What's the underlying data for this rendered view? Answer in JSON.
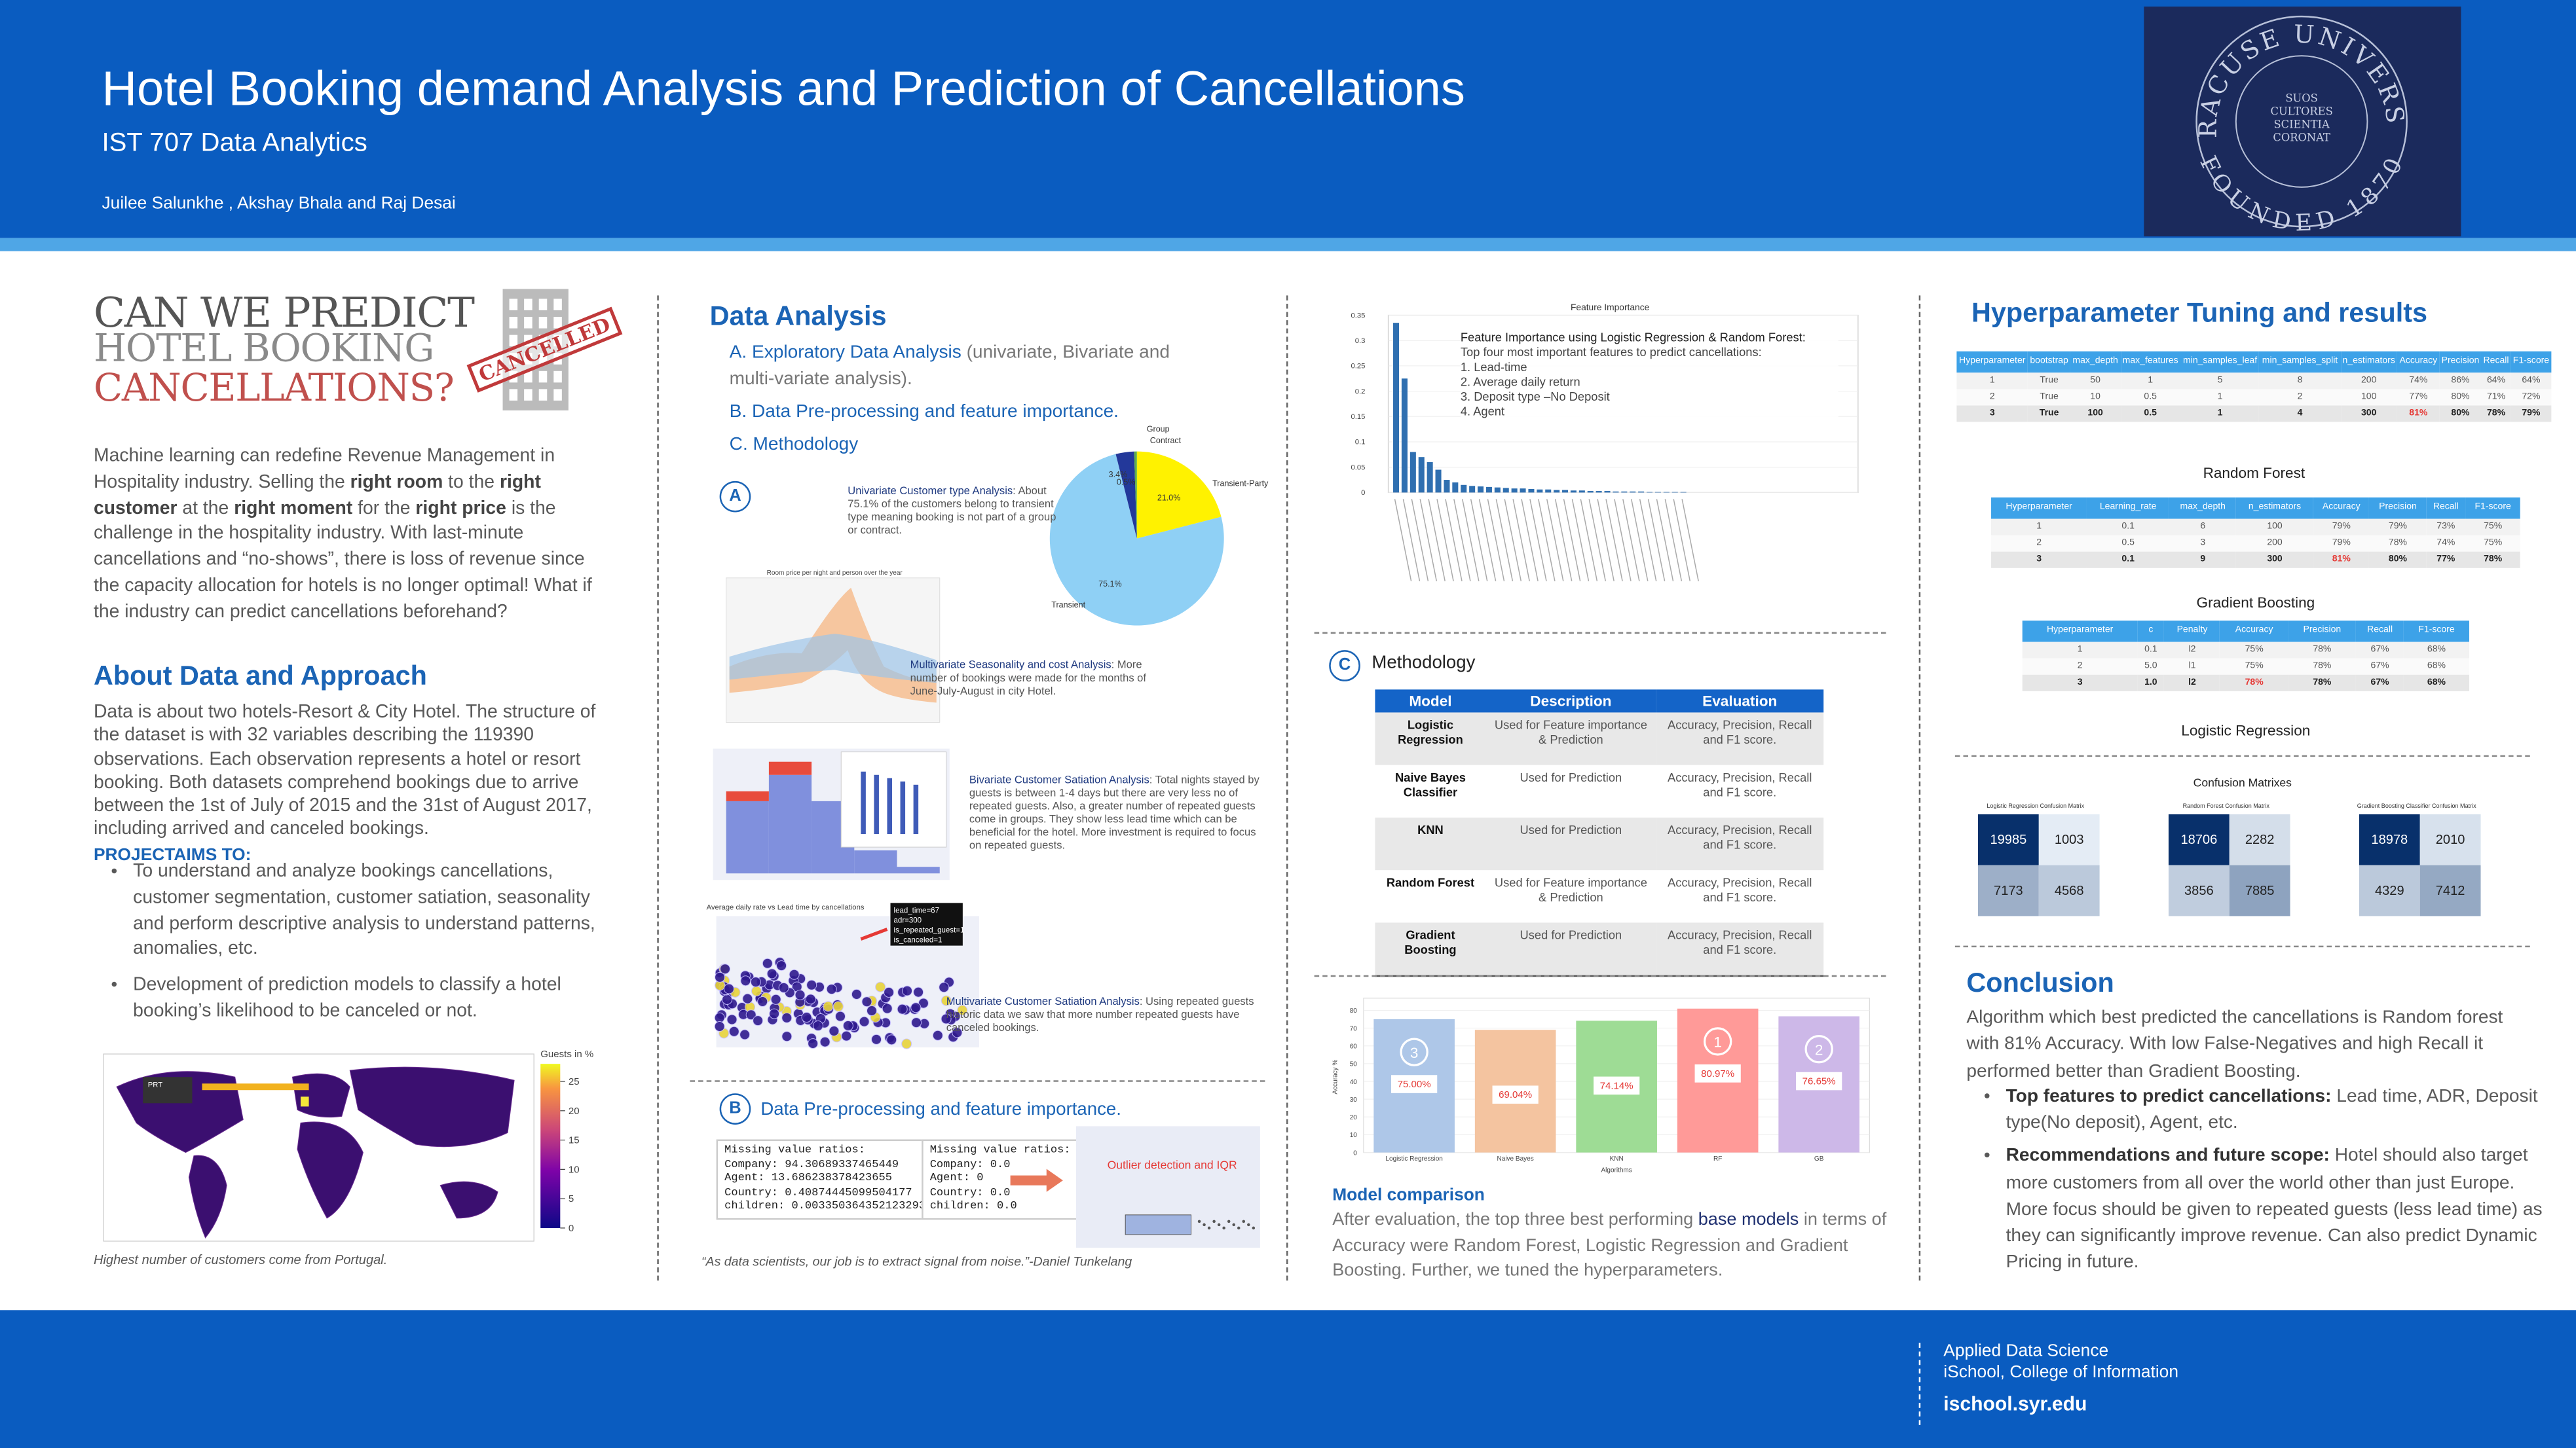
{
  "header": {
    "title": "Hotel Booking demand Analysis and Prediction of Cancellations",
    "subtitle": "IST 707 Data Analytics",
    "authors": "Juilee Salunkhe , Akshay Bhala and Raj Desai",
    "logo": {
      "top": "SYRACUSE UNIVERSITY",
      "bottom": "FOUNDED 1870",
      "motto": [
        "SUOS",
        "CULTORES",
        "SCIENTIA",
        "CORONAT"
      ]
    }
  },
  "intro": {
    "headline": [
      "CAN WE PREDICT",
      "HOTEL BOOKING",
      "CANCELLATIONS?"
    ],
    "stamp": "CANCELLED",
    "paragraph": [
      {
        "text": "Machine learning can redefine Revenue Management in Hospitality industry. Selling the ",
        "bold": false
      },
      {
        "text": "right room",
        "bold": true
      },
      {
        "text": " to the ",
        "bold": false
      },
      {
        "text": "right customer",
        "bold": true
      },
      {
        "text": " at the ",
        "bold": false
      },
      {
        "text": "right moment",
        "bold": true
      },
      {
        "text": " for the ",
        "bold": false
      },
      {
        "text": "right price",
        "bold": true
      },
      {
        "text": " is the challenge in the hospitality industry. With last-minute cancellations and “no-shows”, there is loss of revenue since the capacity allocation for hotels is no longer optimal! What if the industry can predict cancellations beforehand?",
        "bold": false
      }
    ]
  },
  "about": {
    "heading": "About Data and Approach",
    "paragraph": "Data is about two hotels-Resort & City Hotel. The structure of the dataset is with 32 variables describing the 119390 observations. Each observation represents a hotel or resort booking. Both datasets comprehend bookings due to arrive between the 1st of July of 2015 and the 31st of August 2017, including arrived and canceled bookings.",
    "aims_heading": "PROJECTAIMS TO:",
    "aims": [
      "To understand and analyze bookings cancellations, customer segmentation, customer satiation, seasonality and perform descriptive analysis to understand patterns, anomalies, etc.",
      "Development of prediction models to classify a hotel booking’s likelihood to be canceled or not."
    ],
    "map": {
      "legend_title": "Guests in %",
      "legend_lim": [
        0,
        28
      ],
      "legend_ticks": [
        0,
        5,
        10,
        15,
        20,
        25
      ],
      "annotation": "PRT",
      "caption": "Highest number of customers come from Portugal."
    }
  },
  "analysis": {
    "heading": "Data Analysis",
    "items": [
      {
        "marker": "A.",
        "text": "Exploratory  Data Analysis",
        "note": " (univariate, Bivariate and multi-variate analysis)."
      },
      {
        "marker": "B.",
        "text": "Data Pre-processing and feature importance.",
        "note": ""
      },
      {
        "marker": "C.",
        "text": "Methodology",
        "note": ""
      }
    ],
    "section_a": "A",
    "pie": {
      "categories": [
        "Transient-Party",
        "Transient",
        "Contract",
        "Group"
      ],
      "values": [
        21.0,
        75.1,
        3.4,
        0.5
      ],
      "value_labels": [
        "21.0%",
        "75.1%",
        "3.4%",
        "0.5%"
      ],
      "colors": [
        "#fff200",
        "#8fd0f5",
        "#23389a",
        "#5fae4a"
      ]
    },
    "pie_note": {
      "title": "Univariate Customer type Analysis",
      "text": ": About 75.1% of the customers belong to transient type meaning  booking is not part of a group or contract."
    },
    "season_title": "Room price per night and person over the year",
    "season_note": {
      "title": "Multivariate Seasonality and cost Analysis",
      "text": ": More number of bookings were made for the months of June-July-August  in city Hotel."
    },
    "bivariate_note": {
      "title": "Bivariate Customer Satiation Analysis",
      "text": ": Total nights stayed by guests is between 1-4 days but there are very less no of repeated guests. Also, a greater number of repeated guests come in groups. They show less lead time which can be beneficial for the hotel. More investment is required to focus on repeated guests."
    },
    "scatter_title": "Average daily rate vs Lead time by cancellations",
    "scatter_tooltip": [
      "lead_time=67",
      "adr=300",
      "is_repeated_guest=1",
      "is_canceled=1"
    ],
    "scatter_note": {
      "title": "Multivariate Customer Satiation Analysis",
      "text": ": Using repeated guests historic data we saw that more number  repeated guests have canceled bookings."
    },
    "section_b": "B",
    "section_b_heading": "Data Pre-processing and feature importance.",
    "missing_before": [
      "Missing value ratios:",
      "Company: 94.30689337465449",
      "Agent: 13.686238378423655",
      "Country: 0.40874445099504177",
      "children: 0.003350364352123293"
    ],
    "missing_after": [
      "Missing value ratios:",
      "Company: 0.0",
      "Agent: 0",
      "Country: 0.0",
      "children: 0.0"
    ],
    "outlier": "Outlier detection and IQR",
    "quote": "“As data scientists, our job is to extract signal from noise.”-Daniel Tunkelang"
  },
  "features": {
    "chart_data": {
      "type": "bar",
      "title": "Feature Importance",
      "values": [
        0.335,
        0.225,
        0.08,
        0.07,
        0.06,
        0.045,
        0.025,
        0.02,
        0.015,
        0.013,
        0.012,
        0.011,
        0.01,
        0.009,
        0.008,
        0.008,
        0.007,
        0.006,
        0.006,
        0.005,
        0.005,
        0.004,
        0.004,
        0.003,
        0.003,
        0.003,
        0.002,
        0.002,
        0.002,
        0.002,
        0.001,
        0.001,
        0.001,
        0.001,
        0.001
      ],
      "color": "#2f6fb0",
      "ylim": [
        0,
        0.35
      ],
      "yticks": [
        0.0,
        0.05,
        0.1,
        0.15,
        0.2,
        0.25,
        0.3,
        0.35
      ]
    },
    "note_title": "Feature Importance  using Logistic Regression & Random Forest:",
    "note_lines": [
      "Top four most important features to predict cancellations:",
      "1. Lead-time",
      "2. Average daily return",
      "3. Deposit type –No Deposit",
      "4. Agent"
    ]
  },
  "methodology": {
    "marker": "C",
    "heading": "Methodology",
    "columns": [
      "Model",
      "Description",
      "Evaluation"
    ],
    "rows": [
      [
        "Logistic Regression",
        "Used for Feature importance & Prediction",
        "Accuracy, Precision, Recall and F1 score."
      ],
      [
        "Naive Bayes Classifier",
        "Used for Prediction",
        "Accuracy, Precision, Recall and F1 score."
      ],
      [
        "KNN",
        "Used for Prediction",
        "Accuracy, Precision, Recall and F1 score."
      ],
      [
        "Random Forest",
        "Used for Feature importance & Prediction",
        "Accuracy, Precision, Recall and F1 score."
      ],
      [
        "Gradient Boosting",
        "Used for Prediction",
        "Accuracy, Precision, Recall and F1 score."
      ]
    ]
  },
  "comparison": {
    "chart_data": {
      "type": "bar",
      "categories": [
        "Logistic Regression",
        "Naive Bayes",
        "KNN",
        "RF",
        "GB"
      ],
      "values": [
        75.0,
        69.04,
        74.14,
        80.97,
        76.65
      ],
      "value_labels": [
        "75.00%",
        "69.04%",
        "74.14%",
        "80.97%",
        "76.65%"
      ],
      "colors": [
        "#aec7e8",
        "#f4c4a0",
        "#9edc95",
        "#ff9a98",
        "#cdb8e8"
      ],
      "badges": [
        "3",
        null,
        null,
        "1",
        "2"
      ],
      "ylim": [
        0,
        85
      ],
      "yticks": [
        0,
        10,
        20,
        30,
        40,
        50,
        60,
        70,
        80
      ],
      "xlabel": "Algorithms",
      "ylabel": "Accuracy %",
      "grid": true
    },
    "heading": "Model comparison",
    "paragraph": [
      {
        "text": "After evaluation, the top three best performing ",
        "highlight": false
      },
      {
        "text": "base models",
        "highlight": true
      },
      {
        "text": " in terms of Accuracy were Random Forest, Logistic Regression and Gradient Boosting. Further, we tuned the hyperparameters.",
        "highlight": false
      }
    ]
  },
  "tuning": {
    "heading": "Hyperparameter Tuning and results",
    "tables": [
      {
        "caption": "Random Forest",
        "columns": [
          "Hyperparameter",
          "bootstrap",
          "max_depth",
          "max_features",
          "min_samples_leaf",
          "min_samples_split",
          "n_estimators",
          "Accuracy",
          "Precision",
          "Recall",
          "F1-score"
        ],
        "rows": [
          [
            "1",
            "True",
            "50",
            "1",
            "5",
            "8",
            "200",
            "74%",
            "86%",
            "64%",
            "64%"
          ],
          [
            "2",
            "True",
            "10",
            "0.5",
            "1",
            "2",
            "100",
            "77%",
            "80%",
            "71%",
            "72%"
          ],
          [
            "3",
            "True",
            "100",
            "0.5",
            "1",
            "4",
            "300",
            "81%",
            "80%",
            "78%",
            "79%"
          ]
        ],
        "best": [
          2,
          7
        ]
      },
      {
        "caption": "Gradient Boosting",
        "columns": [
          "Hyperparameter",
          "Learning_rate",
          "max_depth",
          "n_estimators",
          "Accuracy",
          "Precision",
          "Recall",
          "F1-score"
        ],
        "rows": [
          [
            "1",
            "0.1",
            "6",
            "100",
            "79%",
            "79%",
            "73%",
            "75%"
          ],
          [
            "2",
            "0.5",
            "3",
            "200",
            "79%",
            "78%",
            "74%",
            "75%"
          ],
          [
            "3",
            "0.1",
            "9",
            "300",
            "81%",
            "80%",
            "77%",
            "78%"
          ]
        ],
        "best": [
          2,
          4
        ]
      },
      {
        "caption": "Logistic Regression",
        "columns": [
          "Hyperparameter",
          "c",
          "Penalty",
          "Accuracy",
          "Precision",
          "Recall",
          "F1-score"
        ],
        "rows": [
          [
            "1",
            "0.1",
            "l2",
            "75%",
            "78%",
            "67%",
            "68%"
          ],
          [
            "2",
            "5.0",
            "l1",
            "75%",
            "78%",
            "67%",
            "68%"
          ],
          [
            "3",
            "1.0",
            "l2",
            "78%",
            "78%",
            "67%",
            "68%"
          ]
        ],
        "best": [
          2,
          3
        ]
      }
    ],
    "confusion_title": "Confusion Matrixes",
    "matrices": [
      {
        "title": "Logistic Regression Confusion Matrix",
        "values": [
          [
            19985,
            1003
          ],
          [
            7173,
            4568
          ]
        ]
      },
      {
        "title": "Random Forest Confusion Matrix",
        "values": [
          [
            18706,
            2282
          ],
          [
            3856,
            7885
          ]
        ]
      },
      {
        "title": "Gradient Boosting Classifier Confusion Matrix",
        "values": [
          [
            18978,
            2010
          ],
          [
            4329,
            7412
          ]
        ]
      }
    ]
  },
  "conclusion": {
    "heading": "Conclusion",
    "paragraph": "Algorithm which best predicted the cancellations is Random forest with 81% Accuracy. With low False-Negatives and high Recall it performed better than Gradient Boosting.",
    "bullets": [
      {
        "bold": "Top features to predict cancellations:",
        "text": " Lead time, ADR, Deposit type(No deposit), Agent, etc."
      },
      {
        "bold": "Recommendations and future scope:",
        "text": " Hotel should also target more customers from all over the world other than just Europe. More focus should be given to repeated guests (less lead time) as they can significantly improve revenue.  Can also predict Dynamic Pricing in future."
      }
    ]
  },
  "footer": {
    "lines": [
      "Applied Data Science",
      "iSchool, College of Information"
    ],
    "url": "ischool.syr.edu"
  }
}
